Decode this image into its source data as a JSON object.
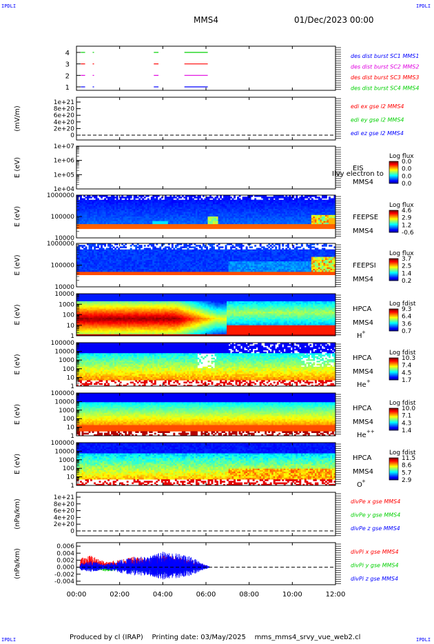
{
  "corner_label": "IPDLI",
  "header": {
    "spacecraft": "MMS4",
    "date": "01/Dec/2023 00:00"
  },
  "footer": {
    "produced_by": "Produced by cl (IRAP)",
    "printing_date": "Printing date: 03/May/2025",
    "script": "mms_mms4_srvy_vue_web2.cl"
  },
  "colors": {
    "red": "#ff0000",
    "green": "#00d000",
    "blue": "#0000ff",
    "magenta": "#e000e0"
  },
  "chart_data": {
    "type": "heatmap",
    "x_ticks": [
      "00:00",
      "02:00",
      "04:00",
      "06:00",
      "08:00",
      "10:00",
      "12:00"
    ],
    "xlim": [
      "00:00",
      "12:00"
    ],
    "panels": [
      {
        "id": "burst",
        "yticks": [
          "4",
          "3",
          "2",
          "1"
        ],
        "legend": [
          {
            "text": "des dist burst SC1 MMS1",
            "color": "blue"
          },
          {
            "text": "des dist burst SC2 MMS2",
            "color": "magenta"
          },
          {
            "text": "des dist burst SC3 MMS3",
            "color": "red"
          },
          {
            "text": "des dist burst SC4 MMS4",
            "color": "green"
          }
        ],
        "bursts": [
          {
            "sc": 4,
            "color": "green",
            "intervals": [
              [
                "00:12",
                "00:24"
              ],
              [
                "00:45",
                "00:47"
              ],
              [
                "03:35",
                "03:48"
              ],
              [
                "05:00",
                "06:05"
              ]
            ]
          },
          {
            "sc": 3,
            "color": "red",
            "intervals": [
              [
                "00:12",
                "00:24"
              ],
              [
                "00:45",
                "00:47"
              ],
              [
                "03:35",
                "03:48"
              ],
              [
                "05:00",
                "06:05"
              ]
            ]
          },
          {
            "sc": 2,
            "color": "magenta",
            "intervals": [
              [
                "00:12",
                "00:24"
              ],
              [
                "00:45",
                "00:47"
              ],
              [
                "03:35",
                "03:48"
              ],
              [
                "05:00",
                "06:05"
              ]
            ]
          },
          {
            "sc": 1,
            "color": "blue",
            "intervals": [
              [
                "00:12",
                "00:24"
              ],
              [
                "00:45",
                "00:47"
              ],
              [
                "03:35",
                "03:48"
              ],
              [
                "05:00",
                "06:05"
              ]
            ]
          }
        ]
      },
      {
        "id": "edi",
        "ylabel": "(mV/m)",
        "yticks": [
          "1e+21",
          "8e+20",
          "6e+20",
          "4e+20",
          "2e+20",
          "0"
        ],
        "legend": [
          {
            "text": "edi ex gse l2 MMS4",
            "color": "red"
          },
          {
            "text": "edi ey gse l2 MMS4",
            "color": "green"
          },
          {
            "text": "edi ez gse l2 MMS4",
            "color": "blue"
          }
        ]
      },
      {
        "id": "eis",
        "ylabel": "E (eV)",
        "yticks": [
          "1e+07",
          "1e+06",
          "1e+05",
          "1e+04"
        ],
        "instrument": "EIS",
        "sub": "MMS4",
        "overlay": "Ilvy electron to",
        "cbar_title": "Log flux",
        "cbar_ticks": [
          "0.0",
          "0.0",
          "0.0",
          "0.0"
        ]
      },
      {
        "id": "feepse",
        "ylabel": "E (eV)",
        "yticks": [
          "1000000",
          "100000",
          "10000"
        ],
        "instrument": "FEEPSE",
        "sub": "MMS4",
        "cbar_title": "Log flux",
        "cbar_ticks": [
          "4.6",
          "2.9",
          "1.2",
          "-0.6"
        ]
      },
      {
        "id": "feepsi",
        "ylabel": "E (eV)",
        "yticks": [
          "1000000",
          "100000",
          "10000"
        ],
        "instrument": "FEEPSI",
        "sub": "MMS4",
        "cbar_title": "Log flux",
        "cbar_ticks": [
          "3.7",
          "2.5",
          "1.4",
          "0.2"
        ]
      },
      {
        "id": "hpca_h",
        "ylabel": "E (eV)",
        "yticks": [
          "10000",
          "1000",
          "100",
          "10",
          "1"
        ],
        "instrument": "HPCA",
        "sub": "MMS4",
        "species": "H",
        "charge": "+",
        "cbar_title": "Log fdist",
        "cbar_ticks": [
          "9.3",
          "6.4",
          "3.6",
          "0.7"
        ]
      },
      {
        "id": "hpca_he",
        "ylabel": "E (eV)",
        "yticks": [
          "100000",
          "10000",
          "1000",
          "100",
          "10",
          "1"
        ],
        "instrument": "HPCA",
        "sub": "MMS4",
        "species": "He",
        "charge": "+",
        "cbar_title": "Log fdist",
        "cbar_ticks": [
          "10.3",
          "7.4",
          "4.5",
          "1.7"
        ]
      },
      {
        "id": "hpca_hepp",
        "ylabel": "E (eV)",
        "yticks": [
          "100000",
          "10000",
          "1000",
          "100",
          "10",
          "1"
        ],
        "instrument": "HPCA",
        "sub": "MMS4",
        "species": "He",
        "charge": "++",
        "cbar_title": "Log fdist",
        "cbar_ticks": [
          "10.0",
          "7.1",
          "4.3",
          "1.4"
        ]
      },
      {
        "id": "hpca_o",
        "ylabel": "E (eV)",
        "yticks": [
          "100000",
          "10000",
          "1000",
          "100",
          "10",
          "1"
        ],
        "instrument": "HPCA",
        "sub": "MMS4",
        "species": "O",
        "charge": "+",
        "cbar_title": "Log fdist",
        "cbar_ticks": [
          "11.5",
          "8.6",
          "5.7",
          "2.9"
        ]
      },
      {
        "id": "divpe",
        "ylabel": "(nPa/km)",
        "yticks": [
          "1e+21",
          "8e+20",
          "6e+20",
          "4e+20",
          "2e+20",
          "0"
        ],
        "legend": [
          {
            "text": "divPe x gse MMS4",
            "color": "red"
          },
          {
            "text": "divPe y gse MMS4",
            "color": "green"
          },
          {
            "text": "divPe z gse MMS4",
            "color": "blue"
          }
        ]
      },
      {
        "id": "divpi",
        "ylabel": "(nPa/km)",
        "yticks": [
          "0.006",
          "0.004",
          "0.002",
          "0.000",
          "-0.002",
          "-0.004"
        ],
        "ylim": [
          -0.005,
          0.007
        ],
        "legend": [
          {
            "text": "divPi x gse MMS4",
            "color": "red"
          },
          {
            "text": "divPi y gse MMS4",
            "color": "green"
          },
          {
            "text": "divPi z gse MMS4",
            "color": "blue"
          }
        ],
        "envelope": [
          {
            "t": "00:10",
            "x": 0.0025,
            "y": -0.0005,
            "z": 0.0012
          },
          {
            "t": "00:40",
            "x": 0.0035,
            "y": -0.0008,
            "z": 0.0018
          },
          {
            "t": "01:20",
            "x": 0.0015,
            "y": -0.0012,
            "z": 0.0008
          },
          {
            "t": "02:00",
            "x": 0.0022,
            "y": -0.001,
            "z": 0.002
          },
          {
            "t": "02:40",
            "x": 0.003,
            "y": -0.0012,
            "z": 0.003
          },
          {
            "t": "03:20",
            "x": 0.0025,
            "y": -0.0015,
            "z": 0.003
          },
          {
            "t": "04:00",
            "x": 0.0035,
            "y": -0.002,
            "z": 0.0045
          },
          {
            "t": "04:40",
            "x": 0.003,
            "y": -0.0015,
            "z": 0.004
          },
          {
            "t": "05:20",
            "x": 0.002,
            "y": -0.001,
            "z": 0.003
          },
          {
            "t": "05:50",
            "x": 0.0008,
            "y": -0.0005,
            "z": 0.0012
          },
          {
            "t": "06:10",
            "x": 0.0001,
            "y": -0.0001,
            "z": 0.0002
          }
        ]
      }
    ]
  }
}
